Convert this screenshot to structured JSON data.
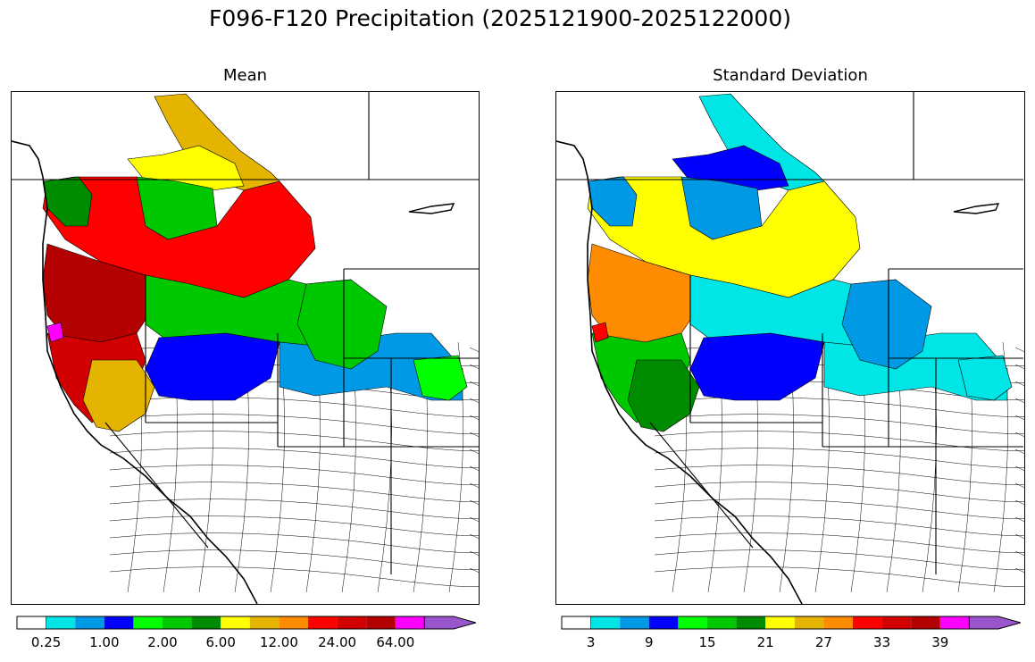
{
  "title": "F096-F120 Precipitation (2025121900-2025122000)",
  "panels": [
    {
      "title": "Mean",
      "id": "mean"
    },
    {
      "title": "Standard Deviation",
      "id": "std"
    }
  ],
  "colorbar_colors": [
    "#ffffff",
    "#00e5e5",
    "#0099e5",
    "#0000ff",
    "#00ff00",
    "#00c800",
    "#008c00",
    "#ffff00",
    "#e5b400",
    "#ff8c00",
    "#ff0000",
    "#d20000",
    "#b40000",
    "#ff00ff",
    "#9955cc"
  ],
  "colorbars": {
    "mean": {
      "tick_labels": [
        "0.25",
        "1.00",
        "2.00",
        "6.00",
        "12.00",
        "24.00",
        "64.00"
      ]
    },
    "std": {
      "tick_labels": [
        "3",
        "9",
        "15",
        "21",
        "27",
        "33",
        "39"
      ]
    }
  },
  "map_layers": {
    "mean": [
      {
        "region": "northern-rockies-north",
        "color": "#e5b400"
      },
      {
        "region": "montana-plains",
        "color": "#ffff00"
      },
      {
        "region": "idaho-central",
        "color": "#00c800"
      },
      {
        "region": "washington-cascades",
        "color": "#ff0000"
      },
      {
        "region": "puget-sound",
        "color": "#008c00"
      },
      {
        "region": "oregon-coast",
        "color": "#b40000"
      },
      {
        "region": "northern-california",
        "color": "#d20000"
      },
      {
        "region": "great-basin-north",
        "color": "#00c800"
      },
      {
        "region": "nevada-north",
        "color": "#0000ff"
      },
      {
        "region": "utah-wyoming",
        "color": "#0099e5"
      },
      {
        "region": "sierra",
        "color": "#e5b400"
      },
      {
        "region": "wyoming-east",
        "color": "#00c800"
      },
      {
        "region": "colorado-north",
        "color": "#00ff00"
      },
      {
        "region": "coast-range-magenta",
        "color": "#ff00ff"
      }
    ],
    "std": [
      {
        "region": "northern-rockies-north",
        "color": "#00e5e5"
      },
      {
        "region": "montana-plains",
        "color": "#0000ff"
      },
      {
        "region": "idaho-central",
        "color": "#0099e5"
      },
      {
        "region": "washington-cascades",
        "color": "#ffff00"
      },
      {
        "region": "puget-sound",
        "color": "#0099e5"
      },
      {
        "region": "oregon-coast",
        "color": "#ff8c00"
      },
      {
        "region": "northern-california",
        "color": "#00c800"
      },
      {
        "region": "great-basin-north",
        "color": "#00e5e5"
      },
      {
        "region": "nevada-north",
        "color": "#0000ff"
      },
      {
        "region": "utah-wyoming",
        "color": "#00e5e5"
      },
      {
        "region": "sierra",
        "color": "#008c00"
      },
      {
        "region": "wyoming-east",
        "color": "#0099e5"
      },
      {
        "region": "colorado-north",
        "color": "#00e5e5"
      },
      {
        "region": "coast-range-magenta",
        "color": "#ff0000"
      }
    ]
  }
}
